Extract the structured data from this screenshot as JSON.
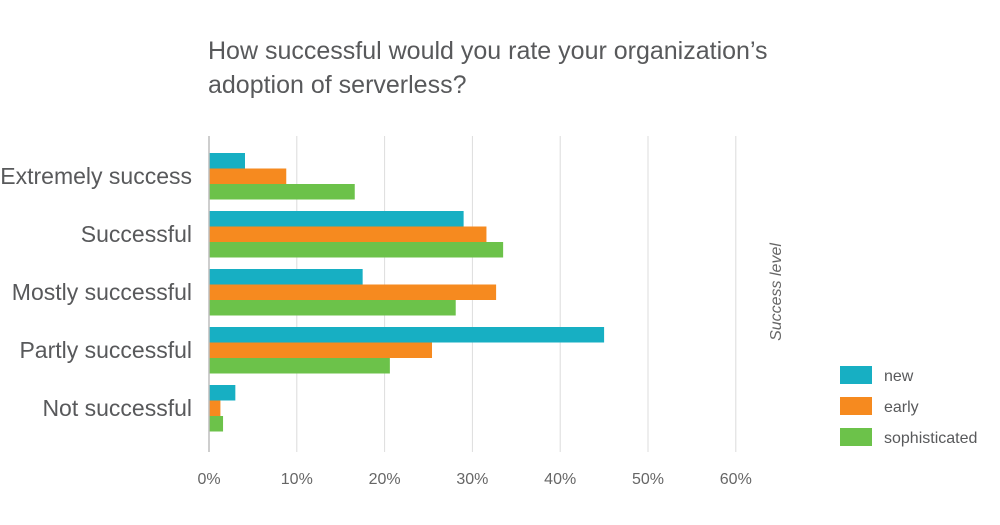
{
  "chart_data": {
    "type": "bar",
    "orientation": "horizontal",
    "title_lines": [
      "How successful would you rate your organization’s",
      "adoption of serverless?"
    ],
    "categories": [
      "Extremely success",
      "Successful",
      "Mostly successful",
      "Partly successful",
      "Not successful"
    ],
    "series": [
      {
        "name": "new",
        "color": "#17afc3",
        "values": [
          4.1,
          29.0,
          17.5,
          45.0,
          3.0
        ]
      },
      {
        "name": "early",
        "color": "#f68a1f",
        "values": [
          8.8,
          31.6,
          32.7,
          25.4,
          1.3
        ]
      },
      {
        "name": "sophisticated",
        "color": "#6cc24a",
        "values": [
          16.6,
          33.5,
          28.1,
          20.6,
          1.6
        ]
      }
    ],
    "xlim": [
      0,
      60
    ],
    "xticks": [
      0,
      10,
      20,
      30,
      40,
      50,
      60
    ],
    "xtick_labels": [
      "0%",
      "10%",
      "20%",
      "30%",
      "40%",
      "50%",
      "60%"
    ],
    "ylabel": "Success level",
    "xlabel": "",
    "grid": true,
    "legend_position": "bottom-right"
  }
}
